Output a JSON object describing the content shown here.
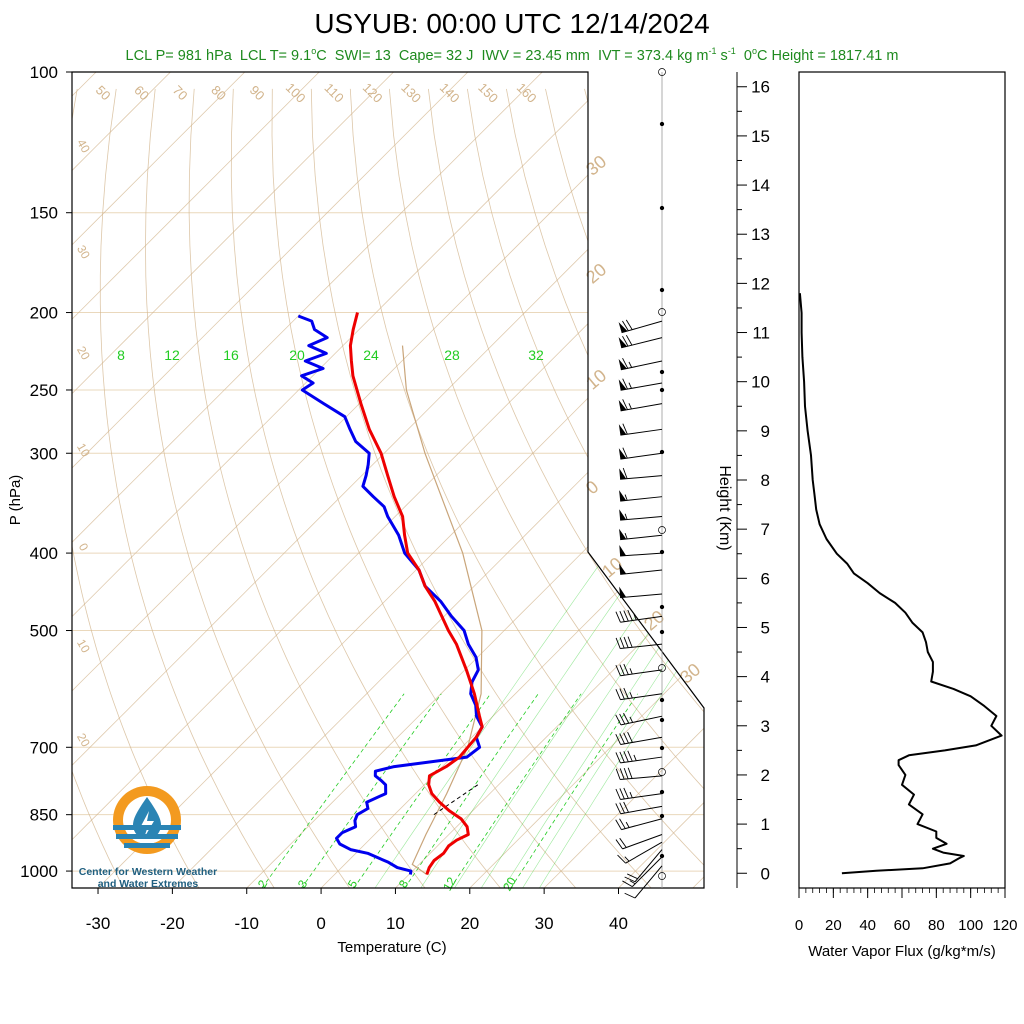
{
  "title": "USYUB: 00:00 UTC 12/14/2024",
  "subtitle": {
    "lcl_p": "LCL P= 981 hPa",
    "lcl_t_prefix": "LCL T= 9.1",
    "lcl_t_unit": "C",
    "swi": "SWI= 13",
    "cape": "Cape= 32 J",
    "iwv": "IWV = 23.45 mm",
    "ivt_prefix": "IVT = 373.4 kg m",
    "ivt_mid": " s",
    "zero_height_prefix": "0",
    "zero_height_suffix": "C Height = 1817.41 m"
  },
  "logo": {
    "line1": "Center for Western Weather",
    "line2": "and Water Extremes"
  },
  "colors": {
    "temperature": "#ee0000",
    "dewpoint": "#0000ee",
    "mixing_ratio": "#22cc22",
    "adiabats": "#d2b48c",
    "isobars": "#ead8bc",
    "logo_orange": "#f39a1f",
    "logo_blue": "#2a84b4"
  },
  "chart_data": [
    {
      "type": "skew-t",
      "xlabel": "Temperature (C)",
      "ylabel": "P (hPa)",
      "pressure_ticks": [
        100,
        150,
        200,
        250,
        300,
        400,
        500,
        700,
        850,
        1000
      ],
      "pressure_tick_labels": [
        "100",
        "150",
        "200",
        "250",
        "300",
        "400",
        "500",
        "700",
        "850",
        "1000"
      ],
      "temperature_ticks": [
        -30,
        -20,
        -10,
        0,
        10,
        20,
        30,
        40
      ],
      "temperature_tick_labels": [
        "-30",
        "-20",
        "-10",
        "0",
        "10",
        "20",
        "30",
        "40"
      ],
      "xlim": [
        -33.5,
        51.5
      ],
      "ylim": [
        1050,
        100
      ],
      "mixing_ratio_labels_upper": [
        "8",
        "12",
        "16",
        "20",
        "24",
        "28",
        "32"
      ],
      "mixing_ratio_labels_lower": [
        "2",
        "3",
        "5",
        "8",
        "12",
        "20"
      ],
      "isotherm_labels": [
        "50",
        "60",
        "70",
        "80",
        "90",
        "100",
        "110",
        "120",
        "130",
        "140",
        "150",
        "160"
      ],
      "adiabat_labels_left": [
        "40",
        "30",
        "20",
        "10",
        "0",
        "10",
        "20"
      ],
      "adiabat_labels_right": [
        "30",
        "20",
        "10",
        "0",
        "10",
        "20",
        "30"
      ],
      "temperature_profile": {
        "name": "Temperature",
        "pressure": [
          1010,
          990,
          970,
          950,
          930,
          915,
          900,
          880,
          860,
          840,
          820,
          800,
          780,
          760,
          740,
          720,
          700,
          680,
          660,
          640,
          600,
          560,
          520,
          500,
          460,
          440,
          420,
          400,
          380,
          360,
          340,
          320,
          300,
          280,
          260,
          240,
          230,
          220,
          210,
          200
        ],
        "temperature": [
          12.4,
          11.8,
          11.5,
          11.8,
          11.5,
          11.8,
          12.6,
          11.4,
          9.5,
          6.8,
          4.4,
          2.2,
          0.6,
          -0.5,
          0.5,
          1.0,
          0.8,
          0.6,
          0.0,
          -1.8,
          -5.5,
          -9.8,
          -14.6,
          -17.5,
          -23.2,
          -26.6,
          -29.6,
          -33.4,
          -36.2,
          -39.0,
          -42.8,
          -46.5,
          -50.4,
          -55.2,
          -59.8,
          -64.6,
          -66.8,
          -69.0,
          -70.8,
          -72.5
        ]
      },
      "dewpoint_profile": {
        "name": "Dewpoint",
        "pressure": [
          1010,
          1000,
          990,
          975,
          960,
          950,
          940,
          925,
          910,
          895,
          880,
          865,
          850,
          835,
          820,
          800,
          780,
          770,
          760,
          750,
          740,
          720,
          700,
          680,
          660,
          640,
          620,
          600,
          580,
          560,
          540,
          520,
          500,
          480,
          460,
          440,
          420,
          400,
          380,
          360,
          350,
          340,
          330,
          320,
          310,
          300,
          290,
          280,
          270,
          260,
          250,
          245,
          240,
          235,
          230,
          225,
          220,
          215,
          210,
          205,
          202
        ],
        "dewpoint": [
          10.2,
          9.8,
          7.5,
          5.6,
          3.2,
          1.6,
          -1.2,
          -3.4,
          -4.6,
          -4.6,
          -3.6,
          -4.5,
          -5.0,
          -4.4,
          -5.4,
          -4.0,
          -5.2,
          -6.4,
          -7.8,
          -8.4,
          -6.5,
          2.0,
          2.4,
          0.6,
          0.0,
          -2.2,
          -3.8,
          -6.0,
          -7.4,
          -8.2,
          -10.2,
          -13.0,
          -15.4,
          -19.0,
          -22.4,
          -26.6,
          -29.6,
          -33.8,
          -37.0,
          -41.0,
          -42.8,
          -45.6,
          -48.4,
          -49.4,
          -50.6,
          -52.0,
          -55.4,
          -57.8,
          -60.2,
          -64.8,
          -69.5,
          -69.0,
          -71.5,
          -69.6,
          -73.0,
          -71.2,
          -74.6,
          -73.2,
          -76.0,
          -77.5,
          -80.0
        ]
      },
      "parcel_path": {
        "pressure": [
          1010,
          981,
          900,
          800,
          700,
          600,
          500,
          400,
          300,
          250,
          220
        ],
        "temperature": [
          12.4,
          9.1,
          6.9,
          4.2,
          0.8,
          -4.6,
          -13.0,
          -26.0,
          -44.5,
          -55.5,
          -62.0
        ]
      },
      "winds": {
        "pressure": [
          985,
          960,
          940,
          920,
          900,
          860,
          830,
          800,
          760,
          720,
          680,
          640,
          600,
          560,
          520,
          480,
          450,
          420,
          400,
          380,
          360,
          340,
          320,
          300,
          280,
          260,
          245,
          230,
          215,
          205
        ],
        "direction_deg": [
          220,
          225,
          220,
          240,
          250,
          255,
          260,
          262,
          265,
          262,
          260,
          258,
          262,
          262,
          264,
          262,
          265,
          264,
          266,
          264,
          265,
          264,
          265,
          262,
          262,
          260,
          260,
          258,
          256,
          254
        ],
        "speed_kt": [
          10,
          15,
          20,
          15,
          20,
          25,
          30,
          35,
          40,
          45,
          40,
          35,
          35,
          35,
          40,
          45,
          50,
          50,
          50,
          55,
          55,
          55,
          60,
          60,
          60,
          65,
          65,
          65,
          70,
          70
        ]
      }
    },
    {
      "type": "line",
      "xlabel": "Water Vapor Flux (g/kg*m/s)",
      "ylabel": "Height (Km)",
      "xlim": [
        0,
        120
      ],
      "ylim": [
        -0.3,
        16.3
      ],
      "x_ticks": [
        0,
        20,
        40,
        60,
        80,
        100,
        120
      ],
      "x_tick_labels": [
        "0",
        "20",
        "40",
        "60",
        "80",
        "100",
        "120"
      ],
      "y_ticks": [
        0,
        1,
        2,
        3,
        4,
        5,
        6,
        7,
        8,
        9,
        10,
        11,
        12,
        13,
        14,
        15,
        16
      ],
      "y_tick_labels": [
        "0",
        "1",
        "2",
        "3",
        "4",
        "5",
        "6",
        "7",
        "8",
        "9",
        "10",
        "11",
        "12",
        "13",
        "14",
        "15",
        "16"
      ],
      "series": [
        {
          "height_km": [
            0.0,
            0.05,
            0.1,
            0.2,
            0.3,
            0.35,
            0.42,
            0.5,
            0.6,
            0.72,
            0.85,
            1.0,
            1.2,
            1.4,
            1.6,
            1.8,
            2.0,
            2.2,
            2.3,
            2.4,
            2.5,
            2.6,
            2.8,
            3.0,
            3.2,
            3.4,
            3.6,
            3.75,
            3.9,
            4.1,
            4.3,
            4.5,
            4.7,
            4.9,
            5.1,
            5.3,
            5.5,
            5.7,
            5.9,
            6.1,
            6.3,
            6.5,
            6.8,
            7.1,
            7.4,
            7.7,
            8.0,
            8.5,
            9.0,
            9.5,
            10.0,
            10.5,
            11.0,
            11.4,
            11.8
          ],
          "flux": [
            25,
            45,
            72,
            88,
            93,
            96,
            84,
            78,
            86,
            80,
            80,
            69,
            72,
            64,
            67,
            60,
            62,
            58,
            58,
            64,
            85,
            103,
            118,
            112,
            115,
            108,
            100,
            90,
            77,
            78,
            78,
            75,
            74,
            72,
            66,
            62,
            56,
            47,
            40,
            32,
            28,
            22,
            16,
            12,
            10,
            9,
            8,
            7,
            5,
            3.5,
            3,
            2,
            1.5,
            1.5,
            0.5
          ]
        }
      ]
    }
  ]
}
